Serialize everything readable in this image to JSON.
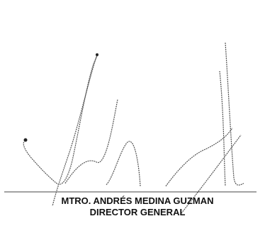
{
  "signature": {
    "name": "MTRO. ANDRÉS MEDINA GUZMAN",
    "position": "DIRECTOR GENERAL"
  }
}
